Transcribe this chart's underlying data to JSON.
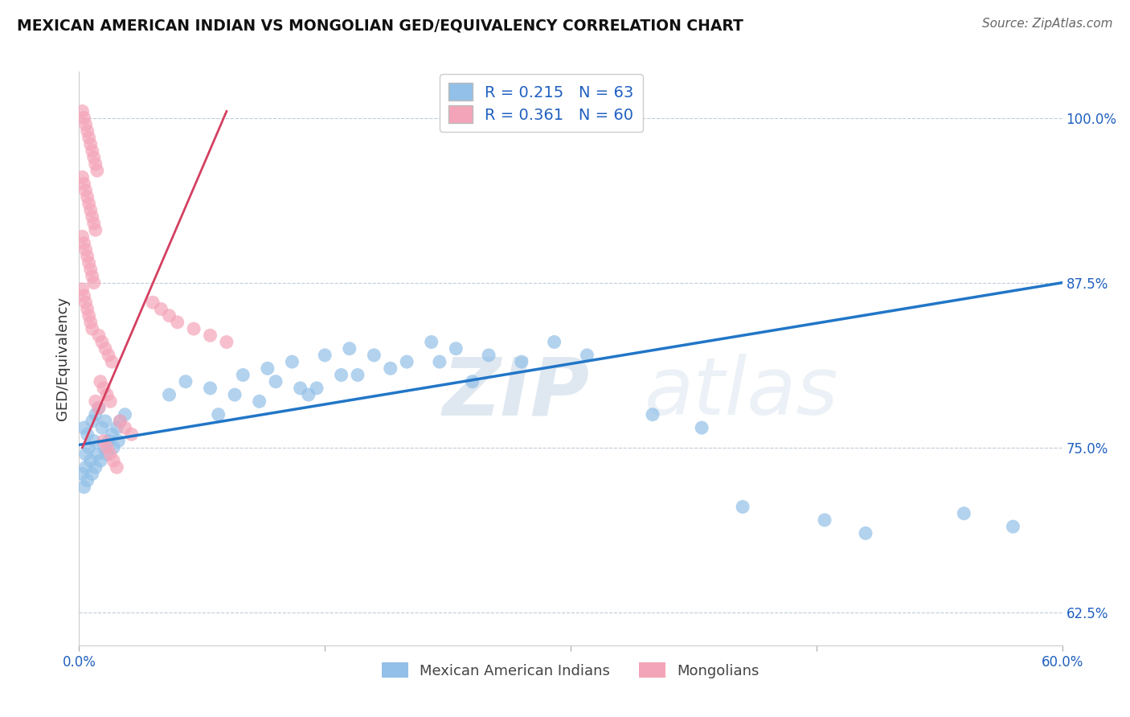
{
  "title": "MEXICAN AMERICAN INDIAN VS MONGOLIAN GED/EQUIVALENCY CORRELATION CHART",
  "source": "Source: ZipAtlas.com",
  "ylabel": "GED/Equivalency",
  "xlim": [
    0.0,
    60.0
  ],
  "ylim": [
    60.0,
    103.5
  ],
  "yticks": [
    62.5,
    75.0,
    87.5,
    100.0
  ],
  "ytick_labels": [
    "62.5%",
    "75.0%",
    "87.5%",
    "100.0%"
  ],
  "xticks": [
    0.0,
    15.0,
    30.0,
    45.0,
    60.0
  ],
  "xtick_labels": [
    "0.0%",
    "",
    "",
    "",
    "60.0%"
  ],
  "blue_R": 0.215,
  "blue_N": 63,
  "pink_R": 0.361,
  "pink_N": 60,
  "blue_color": "#92c0e8",
  "pink_color": "#f4a4b8",
  "blue_line_color": "#2176c7",
  "pink_line_color": "#d44060",
  "watermark_zip": "ZIP",
  "watermark_atlas": "atlas",
  "blue_scatter_x": [
    0.3,
    0.5,
    0.8,
    1.0,
    1.2,
    0.4,
    0.6,
    0.9,
    1.4,
    1.6,
    0.2,
    0.4,
    0.7,
    1.1,
    1.5,
    1.8,
    2.0,
    2.3,
    2.5,
    2.8,
    0.3,
    0.5,
    0.8,
    1.0,
    1.3,
    1.7,
    2.1,
    2.4,
    5.5,
    6.5,
    8.0,
    10.0,
    11.5,
    13.0,
    15.0,
    16.5,
    18.0,
    20.0,
    21.5,
    23.0,
    25.0,
    27.0,
    29.0,
    31.0,
    13.5,
    16.0,
    19.0,
    22.0,
    24.0,
    9.5,
    12.0,
    14.5,
    17.0,
    8.5,
    11.0,
    14.0,
    35.0,
    38.0,
    40.5,
    45.5,
    48.0,
    54.0,
    57.0
  ],
  "blue_scatter_y": [
    76.5,
    76.0,
    77.0,
    77.5,
    78.0,
    74.5,
    75.0,
    75.5,
    76.5,
    77.0,
    73.0,
    73.5,
    74.0,
    74.5,
    75.0,
    75.5,
    76.0,
    76.5,
    77.0,
    77.5,
    72.0,
    72.5,
    73.0,
    73.5,
    74.0,
    74.5,
    75.0,
    75.5,
    79.0,
    80.0,
    79.5,
    80.5,
    81.0,
    81.5,
    82.0,
    82.5,
    82.0,
    81.5,
    83.0,
    82.5,
    82.0,
    81.5,
    83.0,
    82.0,
    79.5,
    80.5,
    81.0,
    81.5,
    80.0,
    79.0,
    80.0,
    79.5,
    80.5,
    77.5,
    78.5,
    79.0,
    77.5,
    76.5,
    70.5,
    69.5,
    68.5,
    70.0,
    69.0
  ],
  "pink_scatter_x": [
    0.2,
    0.3,
    0.4,
    0.5,
    0.6,
    0.7,
    0.8,
    0.9,
    1.0,
    1.1,
    0.2,
    0.3,
    0.4,
    0.5,
    0.6,
    0.7,
    0.8,
    0.9,
    1.0,
    0.2,
    0.3,
    0.4,
    0.5,
    0.6,
    0.7,
    0.8,
    0.9,
    0.2,
    0.3,
    0.4,
    0.5,
    0.6,
    0.7,
    0.8,
    1.2,
    1.4,
    1.6,
    1.8,
    2.0,
    1.3,
    1.5,
    1.7,
    1.9,
    2.5,
    2.8,
    3.2,
    1.0,
    1.2,
    4.5,
    5.0,
    5.5,
    6.0,
    7.0,
    8.0,
    9.0,
    1.5,
    1.7,
    1.9,
    2.1,
    2.3
  ],
  "pink_scatter_y": [
    100.5,
    100.0,
    99.5,
    99.0,
    98.5,
    98.0,
    97.5,
    97.0,
    96.5,
    96.0,
    95.5,
    95.0,
    94.5,
    94.0,
    93.5,
    93.0,
    92.5,
    92.0,
    91.5,
    91.0,
    90.5,
    90.0,
    89.5,
    89.0,
    88.5,
    88.0,
    87.5,
    87.0,
    86.5,
    86.0,
    85.5,
    85.0,
    84.5,
    84.0,
    83.5,
    83.0,
    82.5,
    82.0,
    81.5,
    80.0,
    79.5,
    79.0,
    78.5,
    77.0,
    76.5,
    76.0,
    78.5,
    78.0,
    86.0,
    85.5,
    85.0,
    84.5,
    84.0,
    83.5,
    83.0,
    75.5,
    75.0,
    74.5,
    74.0,
    73.5
  ],
  "blue_line_x": [
    0.0,
    60.0
  ],
  "blue_line_y": [
    75.2,
    87.5
  ],
  "pink_line_x": [
    0.2,
    9.0
  ],
  "pink_line_y": [
    75.0,
    100.5
  ]
}
